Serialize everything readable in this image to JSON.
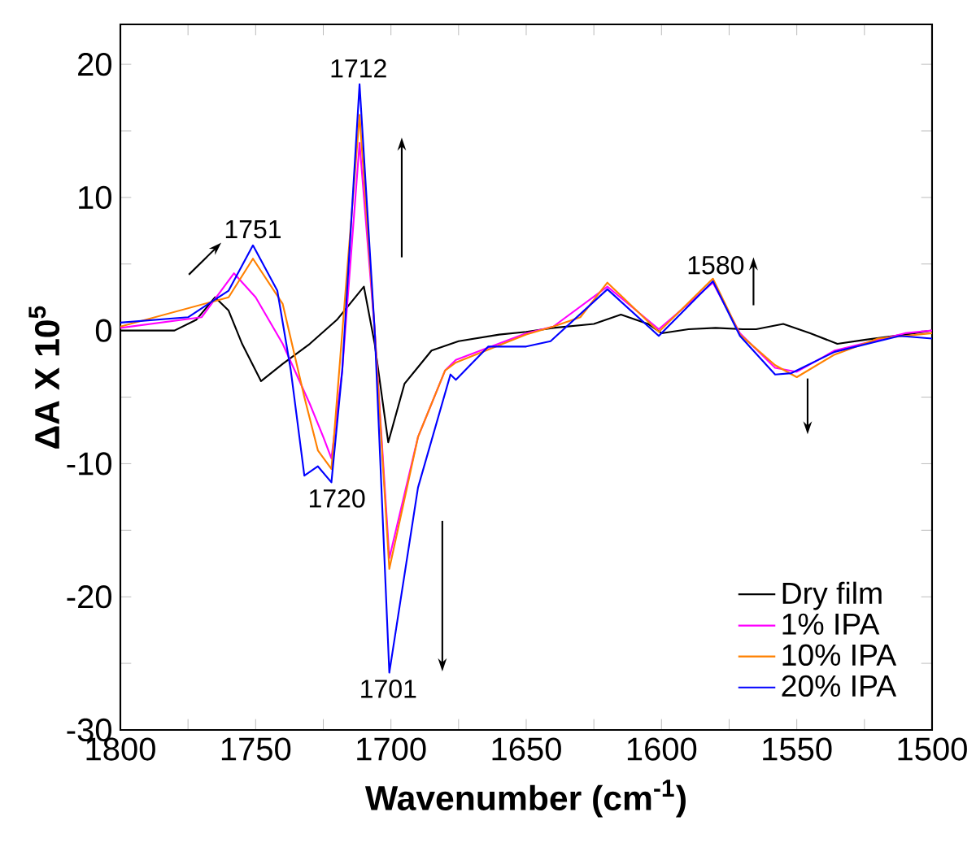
{
  "chart_data": {
    "type": "line",
    "xlabel": "Wavenumber (cm$^{-1}$)",
    "ylabel": "ΔA X 10$^{5}$",
    "xlim": [
      1800,
      1500
    ],
    "ylim": [
      -30,
      23
    ],
    "xticks": [
      1800,
      {
        "value": 1775,
        "label": null
      },
      1750,
      {
        "value": 1725,
        "label": null
      },
      1700,
      {
        "value": 1675,
        "label": null
      },
      1650,
      {
        "value": 1625,
        "label": null
      },
      1600,
      {
        "value": 1575,
        "label": null
      },
      1550,
      {
        "value": 1525,
        "label": null
      },
      1500
    ],
    "yticks": [
      -30,
      {
        "value": -25,
        "label": null
      },
      -20,
      {
        "value": -15,
        "label": null
      },
      -10,
      {
        "value": -5,
        "label": null
      },
      0,
      {
        "value": 5,
        "label": null
      },
      10,
      {
        "value": 15,
        "label": null
      },
      20
    ],
    "legend": "bottom right",
    "grid": false,
    "marker": "none",
    "line_style": "solid",
    "series": [
      {
        "name": "Dry film",
        "color": "#000000",
        "x": [
          1800,
          1780,
          1772,
          1765,
          1760,
          1755,
          1748,
          1740,
          1730,
          1720,
          1710,
          1706,
          1701,
          1695,
          1685,
          1675,
          1660,
          1650,
          1640,
          1625,
          1615,
          1605,
          1600,
          1590,
          1580,
          1570,
          1565,
          1555,
          1545,
          1535,
          1525,
          1510,
          1500
        ],
        "values": [
          0,
          0,
          0.8,
          2.5,
          1.5,
          -1,
          -3.8,
          -2.5,
          -1,
          0.8,
          3.3,
          -1,
          -8.4,
          -4,
          -1.5,
          -0.8,
          -0.3,
          -0.1,
          0.2,
          0.5,
          1.2,
          0.5,
          -0.2,
          0.1,
          0.2,
          0.1,
          0.1,
          0.5,
          -0.2,
          -1,
          -0.7,
          -0.3,
          0
        ]
      },
      {
        "name": "1% IPA",
        "color": "#ff00ff",
        "x": [
          1800,
          1770,
          1758,
          1750,
          1740,
          1730,
          1725,
          1722,
          1718,
          1711.6,
          1706,
          1700.6,
          1690,
          1680,
          1676,
          1650,
          1640,
          1620,
          1601,
          1581,
          1571,
          1558,
          1550,
          1536,
          1510,
          1500
        ],
        "values": [
          0.2,
          1,
          4.3,
          2.5,
          -1,
          -5.5,
          -8,
          -9.6,
          -3,
          14.1,
          0,
          -17.1,
          -8,
          -3,
          -2.2,
          -0.2,
          0.3,
          3.3,
          0.1,
          3.6,
          -0.2,
          -2.8,
          -3.1,
          -1.5,
          -0.2,
          0
        ]
      },
      {
        "name": "10% IPA",
        "color": "#ff8000",
        "x": [
          1800,
          1760,
          1751,
          1740,
          1732,
          1727,
          1722,
          1711.6,
          1706,
          1700.6,
          1690,
          1680,
          1676,
          1650,
          1640,
          1630,
          1620,
          1601,
          1581,
          1571,
          1558,
          1550,
          1536,
          1520,
          1510,
          1500
        ],
        "values": [
          0.3,
          2.5,
          5.4,
          2,
          -5,
          -9,
          -10.4,
          16.2,
          0,
          -17.9,
          -8,
          -3,
          -2.4,
          -0.3,
          0.3,
          1,
          3.6,
          -0.1,
          3.9,
          -0.3,
          -2.6,
          -3.5,
          -1.8,
          -0.6,
          -0.4,
          -0.2
        ]
      },
      {
        "name": "20% IPA",
        "color": "#0000ff",
        "x": [
          1800,
          1775,
          1760,
          1751,
          1742,
          1737,
          1732,
          1727,
          1722,
          1718,
          1711.6,
          1706,
          1700.6,
          1690,
          1678,
          1676,
          1664,
          1650,
          1641,
          1620,
          1601,
          1581,
          1571,
          1558,
          1552,
          1536,
          1512,
          1500
        ],
        "values": [
          0.6,
          1,
          3,
          6.4,
          3,
          -3,
          -10.9,
          -10.2,
          -11.4,
          -3,
          18.5,
          0,
          -25.7,
          -11.8,
          -3.3,
          -3.7,
          -1.2,
          -1.2,
          -0.8,
          3.1,
          -0.4,
          3.7,
          -0.4,
          -3.3,
          -3.2,
          -1.6,
          -0.4,
          -0.6
        ]
      }
    ],
    "annotations": [
      {
        "text": "1751",
        "x": 1751,
        "y": 6.4
      },
      {
        "text": "1712",
        "x": 1712,
        "y": 18.5
      },
      {
        "text": "1720",
        "x": 1720,
        "y": -11.4
      },
      {
        "text": "1701",
        "x": 1701,
        "y": -25.7
      },
      {
        "text": "1580",
        "x": 1580,
        "y": 3.7
      }
    ]
  }
}
